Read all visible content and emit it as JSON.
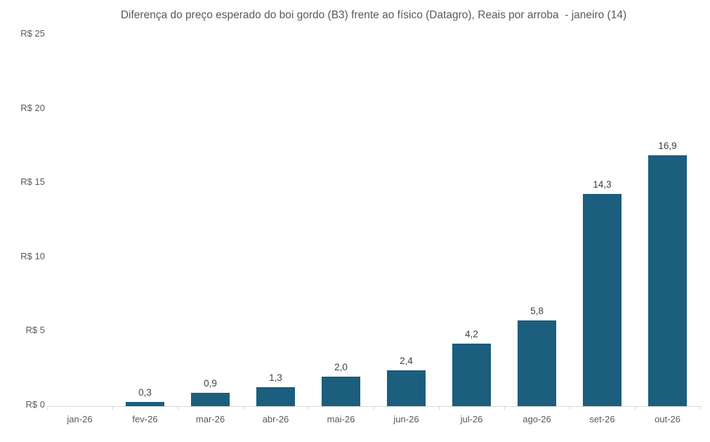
{
  "title": "Diferença do preço esperado do boi gordo (B3) frente ao físico (Datagro), Reais por arroba  - janeiro (14)",
  "chart_data": {
    "type": "bar",
    "title": "Diferença do preço esperado do boi gordo (B3) frente ao físico (Datagro), Reais por arroba  - janeiro (14)",
    "categories": [
      "jan-26",
      "fev-26",
      "mar-26",
      "abr-26",
      "mai-26",
      "jun-26",
      "jul-26",
      "ago-26",
      "set-26",
      "out-26"
    ],
    "values": [
      0,
      0.3,
      0.9,
      1.3,
      2.0,
      2.4,
      4.2,
      5.8,
      14.3,
      16.9
    ],
    "data_labels": [
      "",
      "0,3",
      "0,9",
      "1,3",
      "2,0",
      "2,4",
      "4,2",
      "5,8",
      "14,3",
      "16,9"
    ],
    "xlabel": "",
    "ylabel": "",
    "ylim": [
      0,
      25
    ],
    "y_ticks": [
      0,
      5,
      10,
      15,
      20,
      25
    ],
    "y_tick_labels": [
      "R$ 0",
      "R$ 5",
      "R$ 10",
      "R$ 15",
      "R$ 20",
      "R$ 25"
    ],
    "grid": false,
    "legend": false,
    "colors": {
      "bar": "#1b5e7e",
      "axis_line": "#d6d6d6",
      "tick_text": "#595959",
      "data_label_text": "#404040",
      "title_text": "#595959"
    }
  }
}
